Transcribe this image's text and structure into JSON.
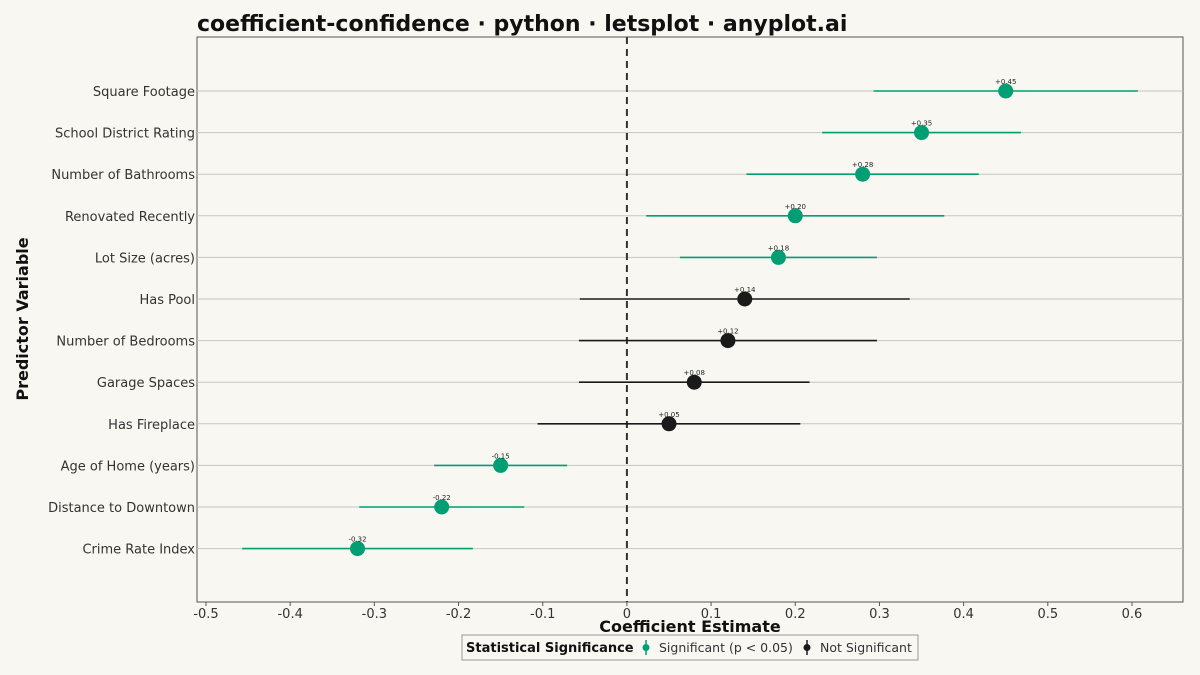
{
  "chart_data": {
    "type": "scatter",
    "title": "coefficient-confidence · python · letsplot · anyplot.ai",
    "xlabel": "Coefficient Estimate",
    "ylabel": "Predictor Variable",
    "xlim": [
      -0.5,
      0.6
    ],
    "x_ticks": [
      -0.5,
      -0.4,
      -0.3,
      -0.2,
      -0.1,
      0,
      0.1,
      0.2,
      0.3,
      0.4,
      0.5,
      0.6
    ],
    "x_tick_labels": [
      "-0.5",
      "-0.4",
      "-0.3",
      "-0.2",
      "-0.1",
      "0",
      "0.1",
      "0.2",
      "0.3",
      "0.4",
      "0.5",
      "0.6"
    ],
    "reference_line": 0,
    "grid": "horizontal",
    "legend": {
      "title": "Statistical Significance",
      "placement": "bottom",
      "items": [
        {
          "label": "Significant (p < 0.05)",
          "color": "#009e73"
        },
        {
          "label": "Not Significant",
          "color": "#1a1a1a"
        }
      ]
    },
    "points": [
      {
        "variable": "Square Footage",
        "estimate": 0.45,
        "ci_low": 0.293,
        "ci_high": 0.607,
        "label": "+0.45",
        "significant": true
      },
      {
        "variable": "School District Rating",
        "estimate": 0.35,
        "ci_low": 0.232,
        "ci_high": 0.468,
        "label": "+0.35",
        "significant": true
      },
      {
        "variable": "Number of Bathrooms",
        "estimate": 0.28,
        "ci_low": 0.142,
        "ci_high": 0.418,
        "label": "+0.28",
        "significant": true
      },
      {
        "variable": "Renovated Recently",
        "estimate": 0.2,
        "ci_low": 0.023,
        "ci_high": 0.377,
        "label": "+0.20",
        "significant": true
      },
      {
        "variable": "Lot Size (acres)",
        "estimate": 0.18,
        "ci_low": 0.063,
        "ci_high": 0.297,
        "label": "+0.18",
        "significant": true
      },
      {
        "variable": "Has Pool",
        "estimate": 0.14,
        "ci_low": -0.056,
        "ci_high": 0.336,
        "label": "+0.14",
        "significant": false
      },
      {
        "variable": "Number of Bedrooms",
        "estimate": 0.12,
        "ci_low": -0.057,
        "ci_high": 0.297,
        "label": "+0.12",
        "significant": false
      },
      {
        "variable": "Garage Spaces",
        "estimate": 0.08,
        "ci_low": -0.057,
        "ci_high": 0.217,
        "label": "+0.08",
        "significant": false
      },
      {
        "variable": "Has Fireplace",
        "estimate": 0.05,
        "ci_low": -0.106,
        "ci_high": 0.206,
        "label": "+0.05",
        "significant": false
      },
      {
        "variable": "Age of Home (years)",
        "estimate": -0.15,
        "ci_low": -0.229,
        "ci_high": -0.071,
        "label": "-0.15",
        "significant": true
      },
      {
        "variable": "Distance to Downtown",
        "estimate": -0.22,
        "ci_low": -0.318,
        "ci_high": -0.122,
        "label": "-0.22",
        "significant": true
      },
      {
        "variable": "Crime Rate Index",
        "estimate": -0.32,
        "ci_low": -0.457,
        "ci_high": -0.183,
        "label": "-0.32",
        "significant": true
      }
    ]
  }
}
